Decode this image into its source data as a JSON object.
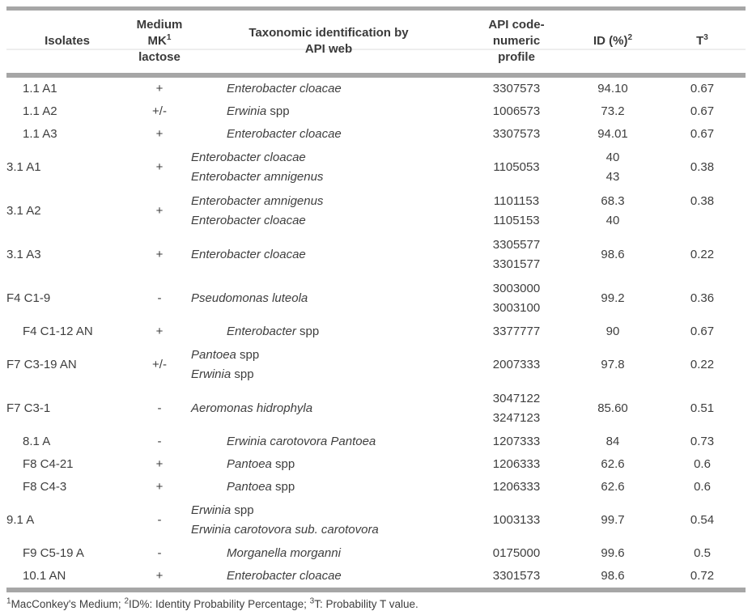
{
  "colors": {
    "rule_gray": "#a6a6a6",
    "thin_rule": "#dedede",
    "text": "#3e3e3e"
  },
  "table": {
    "columns": [
      {
        "key": "isolates",
        "title": "Isolates",
        "sup": "",
        "subtitle": ""
      },
      {
        "key": "lactose",
        "title": "Medium MK",
        "sup": "1",
        "subtitle": "lactose"
      },
      {
        "key": "taxonomy",
        "title": "Taxonomic identification by",
        "sup": "",
        "subtitle": "API web"
      },
      {
        "key": "api-code",
        "title": "API code-numeric",
        "sup": "",
        "subtitle": "profile"
      },
      {
        "key": "id-percent",
        "title": "ID (%)",
        "sup": "2",
        "subtitle": ""
      },
      {
        "key": "t-value",
        "title": "T",
        "sup": "3",
        "subtitle": ""
      }
    ],
    "rows": [
      {
        "isolate": "1.1 A1",
        "lactose": "+",
        "species": [
          {
            "i": "Enterobacter cloacae",
            "p": ""
          }
        ],
        "codes": [
          "3307573"
        ],
        "id_pct": [
          "94.10"
        ],
        "t": [
          "0.67"
        ]
      },
      {
        "isolate": "1.1 A2",
        "lactose": "+/-",
        "species": [
          {
            "i": "Erwinia",
            "p": " spp"
          }
        ],
        "codes": [
          "1006573"
        ],
        "id_pct": [
          "73.2"
        ],
        "t": [
          "0.67"
        ]
      },
      {
        "isolate": "1.1 A3",
        "lactose": "+",
        "species": [
          {
            "i": "Enterobacter cloacae",
            "p": ""
          }
        ],
        "codes": [
          "3307573"
        ],
        "id_pct": [
          "94.01"
        ],
        "t": [
          "0.67"
        ]
      },
      {
        "isolate": "3.1 A1",
        "lactose": "+",
        "species": [
          {
            "i": "Enterobacter cloacae",
            "p": ""
          },
          {
            "i": "Enterobacter amnigenus",
            "p": ""
          }
        ],
        "codes": [
          "1105053"
        ],
        "id_pct": [
          "40",
          "43"
        ],
        "t": [
          "0.38"
        ]
      },
      {
        "isolate": "3.1 A2",
        "lactose": "+",
        "species": [
          {
            "i": "Enterobacter amnigenus",
            "p": ""
          },
          {
            "i": "Enterobacter cloacae",
            "p": ""
          }
        ],
        "codes": [
          "1101153",
          "1105153"
        ],
        "id_pct": [
          "68.3",
          "40"
        ],
        "t": [
          "0.38",
          ""
        ]
      },
      {
        "isolate": "3.1 A3",
        "lactose": "+",
        "species": [
          {
            "i": "Enterobacter cloacae",
            "p": ""
          }
        ],
        "codes": [
          "3305577",
          "3301577"
        ],
        "id_pct": [
          "98.6"
        ],
        "t": [
          "0.22"
        ]
      },
      {
        "isolate": "F4 C1-9",
        "lactose": "-",
        "species": [
          {
            "i": "Pseudomonas luteola",
            "p": ""
          }
        ],
        "codes": [
          "3003000",
          "3003100"
        ],
        "id_pct": [
          "99.2"
        ],
        "t": [
          "0.36"
        ]
      },
      {
        "isolate": "F4 C1-12 AN",
        "lactose": "+",
        "species": [
          {
            "i": "Enterobacter",
            "p": " spp"
          }
        ],
        "codes": [
          "3377777"
        ],
        "id_pct": [
          "90"
        ],
        "t": [
          "0.67"
        ]
      },
      {
        "isolate": "F7 C3-19 AN",
        "lactose": "+/-",
        "species": [
          {
            "i": "Pantoea",
            "p": " spp"
          },
          {
            "i": "Erwinia",
            "p": " spp"
          }
        ],
        "codes": [
          "2007333"
        ],
        "id_pct": [
          "97.8"
        ],
        "t": [
          "0.22"
        ]
      },
      {
        "isolate": "F7 C3-1",
        "lactose": "-",
        "species": [
          {
            "i": "Aeromonas hidrophyla",
            "p": ""
          }
        ],
        "codes": [
          "3047122",
          "3247123"
        ],
        "id_pct": [
          "85.60"
        ],
        "t": [
          "0.51"
        ]
      },
      {
        "isolate": "8.1 A",
        "lactose": "-",
        "species": [
          {
            "i": "Erwinia carotovora Pantoea",
            "p": ""
          }
        ],
        "codes": [
          "1207333"
        ],
        "id_pct": [
          "84"
        ],
        "t": [
          "0.73"
        ]
      },
      {
        "isolate": "F8 C4-21",
        "lactose": "+",
        "species": [
          {
            "i": "Pantoea",
            "p": " spp"
          }
        ],
        "codes": [
          "1206333"
        ],
        "id_pct": [
          "62.6"
        ],
        "t": [
          "0.6"
        ]
      },
      {
        "isolate": "F8 C4-3",
        "lactose": "+",
        "species": [
          {
            "i": "Pantoea",
            "p": " spp"
          }
        ],
        "codes": [
          "1206333"
        ],
        "id_pct": [
          "62.6"
        ],
        "t": [
          "0.6"
        ]
      },
      {
        "isolate": "9.1 A",
        "lactose": "-",
        "species": [
          {
            "i": "Erwinia",
            "p": " spp"
          },
          {
            "i": "Erwinia carotovora sub. carotovora",
            "p": ""
          }
        ],
        "codes": [
          "1003133"
        ],
        "id_pct": [
          "99.7"
        ],
        "t": [
          "0.54"
        ]
      },
      {
        "isolate": "F9 C5-19 A",
        "lactose": "-",
        "species": [
          {
            "i": "Morganella morganni",
            "p": ""
          }
        ],
        "codes": [
          "0175000"
        ],
        "id_pct": [
          "99.6"
        ],
        "t": [
          "0.5"
        ]
      },
      {
        "isolate": "10.1 AN",
        "lactose": "+",
        "species": [
          {
            "i": "Enterobacter cloacae",
            "p": ""
          }
        ],
        "codes": [
          "3301573"
        ],
        "id_pct": [
          "98.6"
        ],
        "t": [
          "0.72"
        ]
      }
    ]
  },
  "footnote": {
    "parts": [
      {
        "sup": "1",
        "text": "MacConkey's Medium; "
      },
      {
        "sup": "2",
        "text": "ID%: Identity Probability Percentage; "
      },
      {
        "sup": "3",
        "text": "T: Probability T value."
      }
    ]
  }
}
